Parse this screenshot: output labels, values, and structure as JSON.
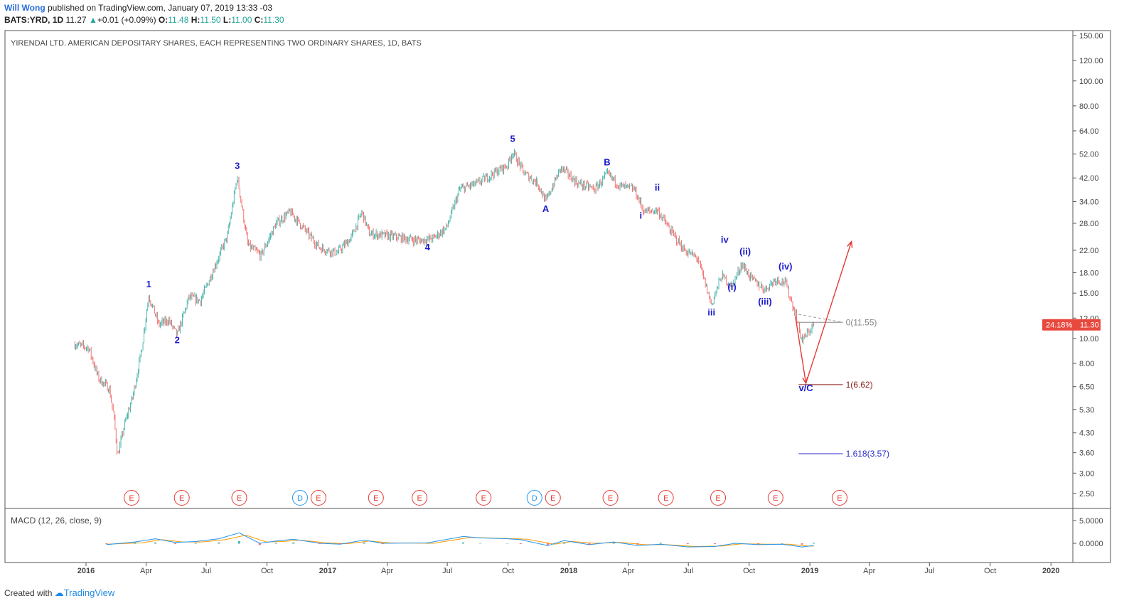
{
  "header": {
    "author": "Will Wong",
    "published": "published on TradingView.com, January 07, 2019 13:33 -03",
    "symbol": "BATS:YRD, 1D",
    "last": "11.27",
    "change": "+0.01 (+0.09%)",
    "o_label": "O:",
    "o": "11.48",
    "h_label": "H:",
    "h": "11.50",
    "l_label": "L:",
    "l": "11.00",
    "c_label": "C:",
    "c": "11.30"
  },
  "footer": {
    "created_with": "Created with",
    "brand": "TradingView"
  },
  "colors": {
    "up": "#26a69a",
    "down": "#ef5350",
    "wave": "#1a1acc",
    "arrow": "#e53935",
    "earnings": "#e53935",
    "dividend": "#2196f3"
  },
  "chart_data": {
    "type": "candlestick",
    "title": "YIRENDAI LTD. AMERICAN DEPOSITARY SHARES, EACH REPRESENTING TWO ORDINARY SHARES, 1D, BATS",
    "y_scale": "log",
    "y_ticks": [
      "150.00",
      "120.00",
      "100.00",
      "80.00",
      "64.00",
      "52.00",
      "42.00",
      "34.00",
      "28.00",
      "22.00",
      "18.00",
      "15.00",
      "12.00",
      "10.00",
      "8.00",
      "6.50",
      "5.30",
      "4.30",
      "3.60",
      "3.00",
      "2.50"
    ],
    "x_ticks": [
      "2016",
      "Apr",
      "Jul",
      "Oct",
      "2017",
      "Apr",
      "Jul",
      "Oct",
      "2018",
      "Apr",
      "Jul",
      "Oct",
      "2019",
      "Apr",
      "Jul",
      "Oct",
      "2020"
    ],
    "price_path": [
      [
        "2015-12-15",
        9.5
      ],
      [
        "2016-01-05",
        9.2
      ],
      [
        "2016-01-20",
        7.0
      ],
      [
        "2016-02-05",
        6.4
      ],
      [
        "2016-02-12",
        5.0
      ],
      [
        "2016-02-18",
        3.5
      ],
      [
        "2016-02-28",
        4.6
      ],
      [
        "2016-03-12",
        6.0
      ],
      [
        "2016-03-25",
        9.0
      ],
      [
        "2016-04-05",
        14.7
      ],
      [
        "2016-04-20",
        11.3
      ],
      [
        "2016-05-05",
        11.8
      ],
      [
        "2016-05-18",
        10.3
      ],
      [
        "2016-06-05",
        14.5
      ],
      [
        "2016-06-22",
        14.0
      ],
      [
        "2016-07-10",
        18.0
      ],
      [
        "2016-08-02",
        25.0
      ],
      [
        "2016-08-17",
        42.5
      ],
      [
        "2016-09-02",
        23.0
      ],
      [
        "2016-09-22",
        21.0
      ],
      [
        "2016-10-15",
        28.0
      ],
      [
        "2016-11-05",
        31.0
      ],
      [
        "2016-12-05",
        25.0
      ],
      [
        "2016-12-20",
        22.5
      ],
      [
        "2017-01-15",
        21.5
      ],
      [
        "2017-02-05",
        24.5
      ],
      [
        "2017-02-22",
        31.0
      ],
      [
        "2017-03-05",
        25.5
      ],
      [
        "2017-04-05",
        25.0
      ],
      [
        "2017-05-20",
        24.0
      ],
      [
        "2017-06-10",
        24.5
      ],
      [
        "2017-06-30",
        27.0
      ],
      [
        "2017-07-20",
        38.0
      ],
      [
        "2017-08-15",
        40.0
      ],
      [
        "2017-09-10",
        44.0
      ],
      [
        "2017-09-30",
        47.0
      ],
      [
        "2017-10-08",
        53.0
      ],
      [
        "2017-10-25",
        44.0
      ],
      [
        "2017-11-15",
        40.0
      ],
      [
        "2017-11-27",
        34.0
      ],
      [
        "2017-12-20",
        46.0
      ],
      [
        "2018-01-15",
        40.0
      ],
      [
        "2018-02-10",
        38.0
      ],
      [
        "2018-02-28",
        43.5
      ],
      [
        "2018-03-20",
        39.0
      ],
      [
        "2018-04-10",
        38.0
      ],
      [
        "2018-04-25",
        31.0
      ],
      [
        "2018-05-15",
        31.5
      ],
      [
        "2018-06-05",
        26.0
      ],
      [
        "2018-06-25",
        22.0
      ],
      [
        "2018-07-15",
        20.5
      ],
      [
        "2018-08-05",
        13.5
      ],
      [
        "2018-08-20",
        17.5
      ],
      [
        "2018-09-05",
        16.0
      ],
      [
        "2018-09-20",
        19.5
      ],
      [
        "2018-10-05",
        17.0
      ],
      [
        "2018-10-25",
        15.5
      ],
      [
        "2018-11-10",
        17.0
      ],
      [
        "2018-11-25",
        16.5
      ],
      [
        "2018-12-10",
        12.5
      ],
      [
        "2018-12-20",
        9.8
      ],
      [
        "2019-01-07",
        11.3
      ]
    ],
    "wave_labels": [
      {
        "text": "1",
        "date": "2016-04-05",
        "price": 15.8
      },
      {
        "text": "2",
        "date": "2016-05-18",
        "price": 9.6
      },
      {
        "text": "3",
        "date": "2016-08-17",
        "price": 45.5
      },
      {
        "text": "4",
        "date": "2017-06-01",
        "price": 22.0
      },
      {
        "text": "5",
        "date": "2017-10-08",
        "price": 58.0
      },
      {
        "text": "A",
        "date": "2017-11-27",
        "price": 31.0
      },
      {
        "text": "B",
        "date": "2018-02-28",
        "price": 47.0
      },
      {
        "text": "i",
        "date": "2018-04-20",
        "price": 29.2
      },
      {
        "text": "ii",
        "date": "2018-05-15",
        "price": 37.5
      },
      {
        "text": "iii",
        "date": "2018-08-05",
        "price": 12.3
      },
      {
        "text": "iv",
        "date": "2018-08-25",
        "price": 23.5
      },
      {
        "text": "(i)",
        "date": "2018-09-05",
        "price": 15.4
      },
      {
        "text": "(ii)",
        "date": "2018-09-25",
        "price": 21.2
      },
      {
        "text": "(iii)",
        "date": "2018-10-25",
        "price": 13.5
      },
      {
        "text": "(iv)",
        "date": "2018-11-25",
        "price": 18.5
      },
      {
        "text": "v/C",
        "date": "2018-12-26",
        "price": 6.25
      }
    ],
    "fib_levels": [
      {
        "label": "0(11.55)",
        "price": 11.55,
        "color": "#888888"
      },
      {
        "label": "1(6.62)",
        "price": 6.62,
        "color": "#8b1a1a"
      },
      {
        "label": "1.618(3.57)",
        "price": 3.57,
        "color": "#2a2acc"
      }
    ],
    "projection": [
      [
        "2018-12-10",
        12.2
      ],
      [
        "2018-12-26",
        6.7
      ],
      [
        "2019-03-05",
        23.8
      ]
    ],
    "last_price": {
      "label": "11.30",
      "change_pct": "24.18%",
      "price": 11.3
    },
    "events": [
      {
        "type": "E",
        "date": "2016-03-10"
      },
      {
        "type": "E",
        "date": "2016-05-25"
      },
      {
        "type": "E",
        "date": "2016-08-20"
      },
      {
        "type": "D",
        "date": "2016-11-20"
      },
      {
        "type": "E",
        "date": "2016-11-20",
        "offset": 1
      },
      {
        "type": "E",
        "date": "2017-03-15"
      },
      {
        "type": "E",
        "date": "2017-05-20"
      },
      {
        "type": "E",
        "date": "2017-08-25"
      },
      {
        "type": "D",
        "date": "2017-11-10"
      },
      {
        "type": "E",
        "date": "2017-11-10",
        "offset": 1
      },
      {
        "type": "E",
        "date": "2018-03-05"
      },
      {
        "type": "E",
        "date": "2018-05-28"
      },
      {
        "type": "E",
        "date": "2018-08-15"
      },
      {
        "type": "E",
        "date": "2018-11-10"
      },
      {
        "type": "E",
        "date": "2019-02-15"
      }
    ],
    "macd": {
      "label": "MACD (12, 26, close, 9)",
      "y_ticks": [
        "5.0000",
        "0.0000"
      ],
      "macd_line": [
        [
          "2016-02-01",
          -0.3
        ],
        [
          "2016-03-15",
          0.3
        ],
        [
          "2016-04-15",
          1.0
        ],
        [
          "2016-05-15",
          0.2
        ],
        [
          "2016-06-15",
          0.4
        ],
        [
          "2016-07-20",
          1.0
        ],
        [
          "2016-08-20",
          2.3
        ],
        [
          "2016-09-20",
          0.0
        ],
        [
          "2016-10-15",
          0.5
        ],
        [
          "2016-11-10",
          0.9
        ],
        [
          "2016-12-20",
          0.0
        ],
        [
          "2017-01-20",
          -0.2
        ],
        [
          "2017-02-25",
          0.7
        ],
        [
          "2017-03-25",
          0.0
        ],
        [
          "2017-06-01",
          0.1
        ],
        [
          "2017-07-25",
          1.5
        ],
        [
          "2017-08-20",
          1.2
        ],
        [
          "2017-09-30",
          1.0
        ],
        [
          "2017-10-20",
          0.8
        ],
        [
          "2017-11-30",
          -0.5
        ],
        [
          "2017-12-25",
          0.6
        ],
        [
          "2018-02-01",
          -0.3
        ],
        [
          "2018-03-10",
          0.3
        ],
        [
          "2018-04-15",
          -0.5
        ],
        [
          "2018-05-20",
          -0.2
        ],
        [
          "2018-06-30",
          -0.8
        ],
        [
          "2018-08-10",
          -0.7
        ],
        [
          "2018-09-10",
          0.0
        ],
        [
          "2018-10-15",
          -0.3
        ],
        [
          "2018-11-20",
          -0.2
        ],
        [
          "2018-12-20",
          -0.8
        ],
        [
          "2019-01-07",
          -0.5
        ]
      ],
      "signal_line": [
        [
          "2016-02-01",
          -0.2
        ],
        [
          "2016-03-25",
          0.1
        ],
        [
          "2016-04-25",
          0.8
        ],
        [
          "2016-05-25",
          0.3
        ],
        [
          "2016-06-25",
          0.3
        ],
        [
          "2016-07-30",
          0.8
        ],
        [
          "2016-08-30",
          1.8
        ],
        [
          "2016-09-30",
          0.3
        ],
        [
          "2016-10-25",
          0.4
        ],
        [
          "2016-11-20",
          0.7
        ],
        [
          "2016-12-30",
          0.1
        ],
        [
          "2017-01-30",
          -0.1
        ],
        [
          "2017-03-05",
          0.5
        ],
        [
          "2017-04-05",
          0.1
        ],
        [
          "2017-06-10",
          0.0
        ],
        [
          "2017-08-05",
          1.3
        ],
        [
          "2017-08-30",
          1.2
        ],
        [
          "2017-10-10",
          1.0
        ],
        [
          "2017-10-30",
          0.9
        ],
        [
          "2017-12-10",
          -0.2
        ],
        [
          "2018-01-05",
          0.4
        ],
        [
          "2018-02-10",
          0.0
        ],
        [
          "2018-03-20",
          0.2
        ],
        [
          "2018-04-25",
          -0.3
        ],
        [
          "2018-05-30",
          -0.3
        ],
        [
          "2018-07-10",
          -0.7
        ],
        [
          "2018-08-20",
          -0.6
        ],
        [
          "2018-09-20",
          -0.1
        ],
        [
          "2018-10-25",
          -0.2
        ],
        [
          "2018-11-30",
          -0.2
        ],
        [
          "2018-12-30",
          -0.6
        ],
        [
          "2019-01-07",
          -0.6
        ]
      ]
    }
  }
}
